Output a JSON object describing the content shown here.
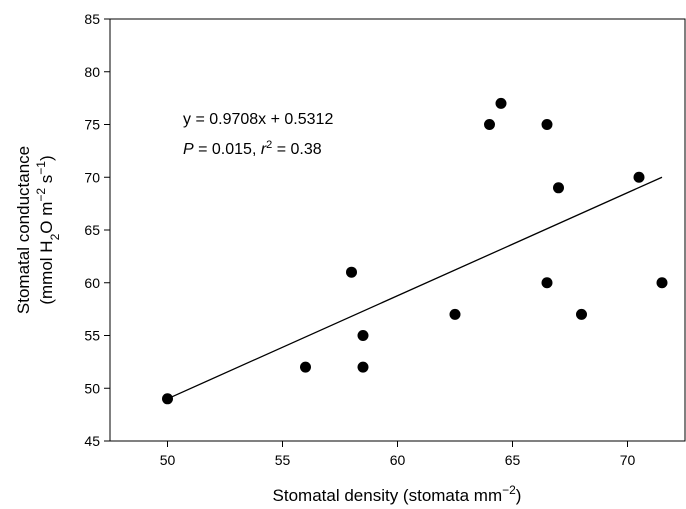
{
  "chart_data": {
    "type": "scatter",
    "x": [
      50,
      56,
      58,
      58.5,
      58.5,
      62.5,
      64,
      64.5,
      66.5,
      66.5,
      67,
      68,
      70.5,
      71.5
    ],
    "y": [
      49,
      52,
      61,
      55,
      52,
      57,
      75,
      77,
      75,
      60,
      69,
      57,
      70,
      60
    ],
    "xlim": [
      47.5,
      72.5
    ],
    "ylim": [
      45,
      85
    ],
    "xticks": [
      "50",
      "55",
      "60",
      "65",
      "70"
    ],
    "yticks": [
      "45",
      "50",
      "55",
      "60",
      "65",
      "70",
      "75",
      "80",
      "85"
    ],
    "xlabel": {
      "prefix": "Stomatal density (stomata mm",
      "exp": "−2",
      "suffix": ")"
    },
    "ylabel": {
      "line1": "Stomatal conductance",
      "line2": {
        "part1": "(mmol H",
        "sub1": "2",
        "part2": "O m",
        "sup1": "−2",
        "part3": " s",
        "sup2": "−1",
        "part4": ")"
      }
    },
    "regression": {
      "x_range": [
        50,
        71.5
      ],
      "y_range": [
        49,
        70
      ],
      "equation": "y = 0.9708x + 0.5312",
      "stats": {
        "p_sym": "P",
        "p_val": " = 0.015, ",
        "r_sym": "r",
        "r_exp": "2",
        "r_val": " = 0.38"
      }
    },
    "grid": false,
    "marker_color": "#000000"
  }
}
